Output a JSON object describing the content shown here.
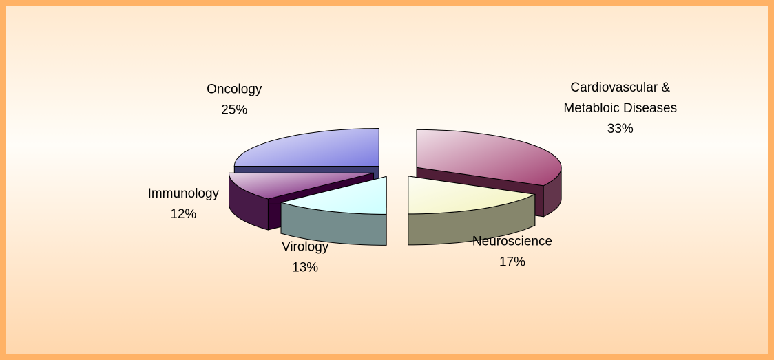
{
  "chart_data": {
    "type": "pie3d",
    "categories": [
      "Cardiovascular &\nMetabloic Diseases",
      "Neuroscience",
      "Virology",
      "Immunology",
      "Oncology"
    ],
    "values": [
      33,
      17,
      13,
      12,
      25
    ],
    "value_labels": [
      "33%",
      "17%",
      "13%",
      "12%",
      "25%"
    ],
    "colors": [
      "#a03c6e",
      "#f2f2b8",
      "#ccffff",
      "#660066",
      "#7a7ae0"
    ],
    "exploded": true
  }
}
